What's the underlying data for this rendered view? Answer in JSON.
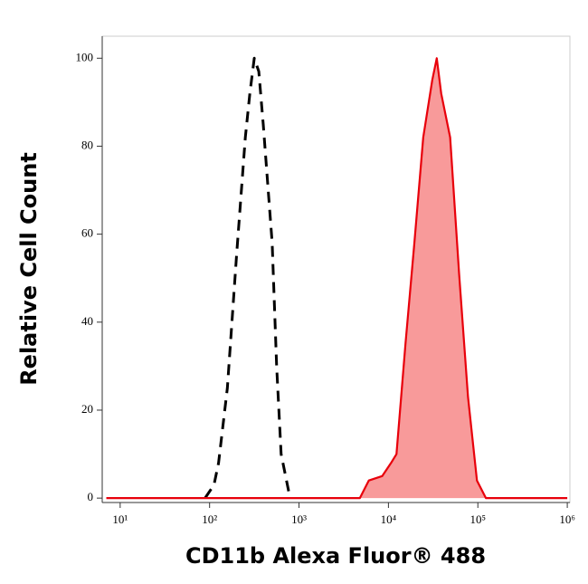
{
  "chart_data": {
    "type": "histogram-overlay",
    "xlabel": "CD11b Alexa Fluor® 488",
    "ylabel": "Relative Cell Count",
    "xscale": "log",
    "xlim": [
      6.3,
      1070000
    ],
    "ylim": [
      -1,
      105
    ],
    "xticks": [
      {
        "value": 10,
        "label": "10¹"
      },
      {
        "value": 100,
        "label": "10²"
      },
      {
        "value": 1000,
        "label": "10³"
      },
      {
        "value": 10000,
        "label": "10⁴"
      },
      {
        "value": 100000,
        "label": "10⁵"
      },
      {
        "value": 1000000,
        "label": "10⁶"
      }
    ],
    "yticks": [
      0,
      20,
      40,
      60,
      80,
      100
    ],
    "series": [
      {
        "color": "#000000",
        "style": "dashed",
        "x": [
          89,
          112,
          126,
          158,
          200,
          251,
          282,
          316,
          355,
          398,
          501,
          562,
          631,
          708,
          794
        ],
        "values": [
          0,
          3,
          8,
          25,
          55,
          82,
          92,
          100,
          97,
          85,
          58,
          30,
          10,
          5,
          0
        ]
      },
      {
        "color": "#e8000b",
        "fill": "#f89a9a",
        "style": "filled",
        "x": [
          7,
          4790,
          6030,
          8510,
          10700,
          12300,
          15500,
          19500,
          24500,
          30900,
          34700,
          38900,
          49000,
          61700,
          77600,
          97700,
          123000,
          1000000
        ],
        "values": [
          0,
          0,
          4,
          5,
          8,
          10,
          35,
          58,
          82,
          95,
          100,
          92,
          82,
          51,
          23,
          4,
          0,
          0
        ]
      }
    ]
  }
}
